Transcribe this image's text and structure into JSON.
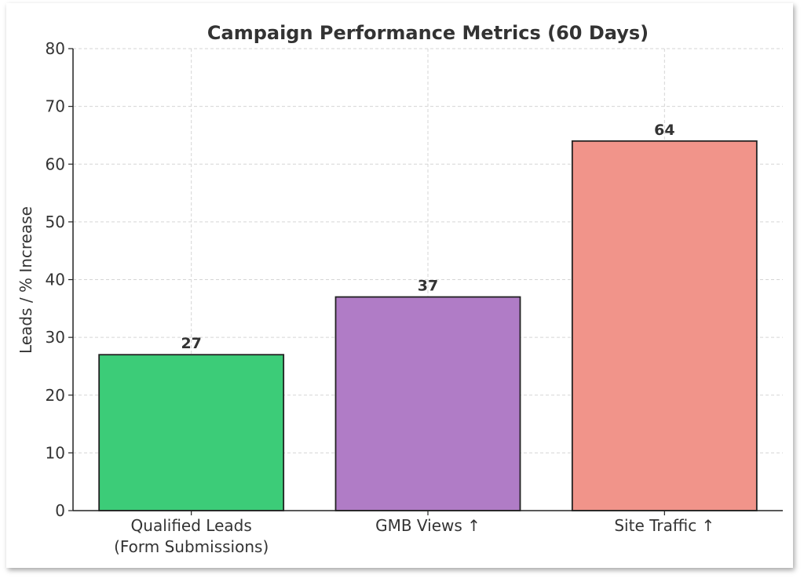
{
  "chart_data": {
    "type": "bar",
    "title": "Campaign Performance Metrics (60 Days)",
    "xlabel": "",
    "ylabel": "Leads / % Increase",
    "categories": [
      "Qualified Leads\n(Form Submissions)",
      "GMB Views ↑",
      "Site Traffic ↑"
    ],
    "values": [
      27,
      37,
      64
    ],
    "colors": [
      "#3ccc78",
      "#b07cc6",
      "#f1948a"
    ],
    "ylim": [
      0,
      80
    ],
    "yticks": [
      0,
      10,
      20,
      30,
      40,
      50,
      60,
      70,
      80
    ],
    "grid": true,
    "data_labels": [
      "27",
      "37",
      "64"
    ]
  }
}
